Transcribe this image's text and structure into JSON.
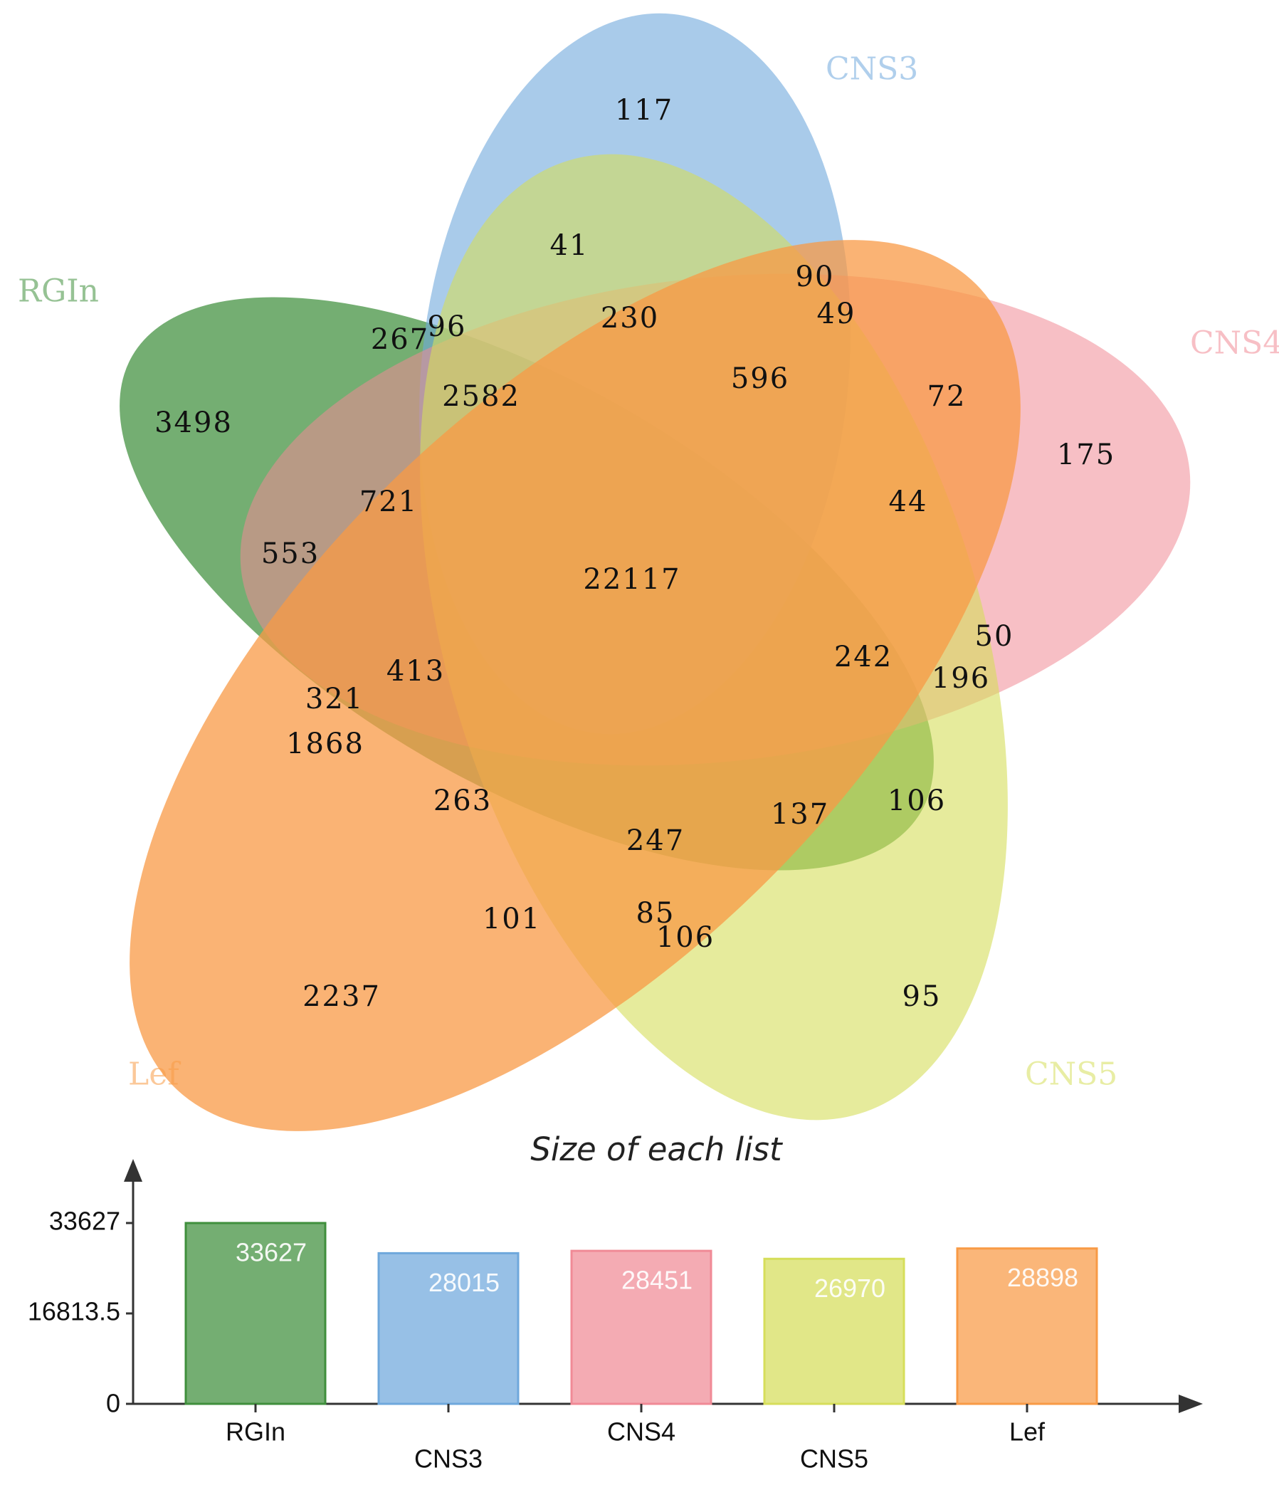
{
  "chart_data": [
    {
      "type": "venn",
      "sets": [
        {
          "name": "RGIn",
          "color": "#3f8f3c"
        },
        {
          "name": "CNS3",
          "color": "#6fa8dc"
        },
        {
          "name": "CNS4",
          "color": "#f08a96"
        },
        {
          "name": "CNS5",
          "color": "#d6de5a"
        },
        {
          "name": "Lef",
          "color": "#f89a45"
        }
      ],
      "regions": [
        "117",
        "41",
        "90",
        "49",
        "230",
        "267",
        "96",
        "2582",
        "596",
        "72",
        "3498",
        "175",
        "721",
        "44",
        "553",
        "22117",
        "50",
        "242",
        "196",
        "413",
        "321",
        "1868",
        "263",
        "137",
        "106",
        "247",
        "101",
        "85",
        "106",
        "2237",
        "95"
      ]
    },
    {
      "type": "bar",
      "title": "Size of each list",
      "categories": [
        "RGIn",
        "CNS3",
        "CNS4",
        "CNS5",
        "Lef"
      ],
      "values": [
        33627,
        28015,
        28451,
        26970,
        28898
      ],
      "value_labels": [
        "33627",
        "28015",
        "28451",
        "26970",
        "28898"
      ],
      "colors": [
        "#3f8f3c",
        "#6fa8dc",
        "#f08a96",
        "#d6de5a",
        "#f89a45"
      ],
      "yticks": [
        "0",
        "16813.5",
        "33627"
      ],
      "ylim": [
        0,
        33627
      ]
    }
  ]
}
